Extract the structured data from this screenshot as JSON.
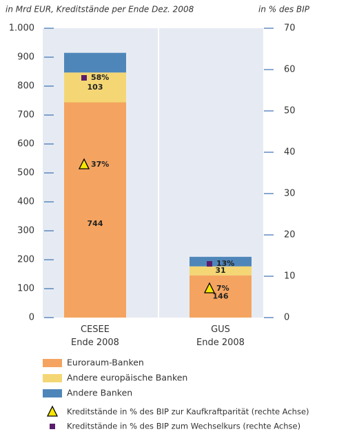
{
  "chart_data": {
    "type": "bar",
    "stacked": true,
    "y_label": "in Mrd EUR, Kreditstände per Ende Dez. 2008",
    "y2_label": "in % des BIP",
    "categories": [
      "CESEE\nEnde 2008",
      "GUS\nEnde 2008"
    ],
    "ylim": [
      0,
      1000
    ],
    "yticks": [
      0,
      100,
      200,
      300,
      400,
      500,
      600,
      700,
      800,
      900,
      {
        "value": 1000,
        "label": "1.000"
      }
    ],
    "y2lim": [
      0,
      70
    ],
    "y2ticks": [
      0,
      10,
      20,
      30,
      40,
      50,
      60,
      70
    ],
    "series": [
      {
        "name": "Euroraum-Banken",
        "color": "#f4a460",
        "values": [
          744,
          146
        ]
      },
      {
        "name": "Andere europäische Banken",
        "color": "#f4d774",
        "values": [
          103,
          31
        ]
      },
      {
        "name": "Andere Banken",
        "color": "#4f86ba",
        "values": [
          68,
          33
        ]
      },
      {
        "name": "Kreditstände in % des BIP zur Kaufkraftparität (rechte Achse)",
        "color": "#f7e600",
        "marker": "triangle",
        "axis": "y2",
        "values": [
          37,
          7
        ],
        "value_labels": [
          "37%",
          "7%"
        ]
      },
      {
        "name": "Kreditstände in % des BIP zum Wechselkurs (rechte Achse)",
        "color": "#5a1d6b",
        "marker": "square",
        "axis": "y2",
        "values": [
          58,
          13
        ],
        "value_labels": [
          "58%",
          "13%"
        ]
      }
    ]
  }
}
